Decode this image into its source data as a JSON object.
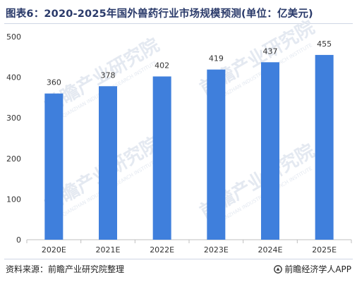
{
  "title": "图表6：2020-2025年国外兽药行业市场规模预测(单位：亿美元)",
  "footer": {
    "source": "资料来源：前瞻产业研究院整理",
    "brand": "前瞻经济学人APP"
  },
  "watermark": {
    "text": "前瞻产业研究院",
    "subtext": "QIANZHAN INDUSTRY RESEARCH INSTITUTE"
  },
  "colors": {
    "bar": "#3f7fdc",
    "axis": "#bfbfbf",
    "title": "#2a3a6a",
    "watermark": "#e4e9f1"
  },
  "chart_data": {
    "type": "bar",
    "title": "",
    "xlabel": "",
    "ylabel": "",
    "categories": [
      "2020E",
      "2021E",
      "2022E",
      "2023E",
      "2024E",
      "2025E"
    ],
    "values": [
      360,
      378,
      402,
      419,
      437,
      455
    ],
    "ylim": [
      0,
      500
    ],
    "yticks": [
      0,
      100,
      200,
      300,
      400,
      500
    ],
    "data_labels": true,
    "grid": false,
    "legend": "none"
  }
}
